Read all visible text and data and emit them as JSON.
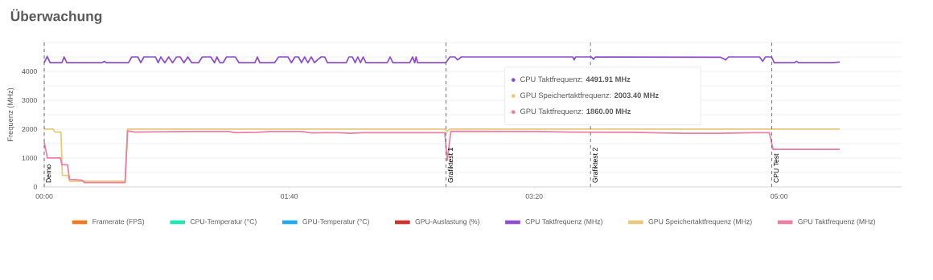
{
  "chart_data": {
    "type": "line",
    "title": "Überwachung",
    "ylabel": "Frequenz (MHz)",
    "xlim": [
      0,
      350
    ],
    "ylim": [
      0,
      5000
    ],
    "xticks": [
      {
        "value": 0,
        "label": "00:00"
      },
      {
        "value": 100,
        "label": "01:40"
      },
      {
        "value": 200,
        "label": "03:20"
      },
      {
        "value": 300,
        "label": "05:00"
      }
    ],
    "yticks": [
      0,
      {
        "value": 500,
        "label": null
      },
      1000,
      {
        "value": 1500,
        "label": null
      },
      2000,
      {
        "value": 2500,
        "label": null
      },
      3000,
      {
        "value": 3500,
        "label": null
      },
      4000,
      {
        "value": 4500,
        "label": null
      },
      {
        "value": 5000,
        "label": null
      }
    ],
    "grid": "y",
    "legend": "bottom",
    "marker": "none",
    "line_style": "solid",
    "series": [
      {
        "name": "Framerate (FPS)",
        "color": "#f07b1f"
      },
      {
        "name": "CPU-Temperatur (°C)",
        "color": "#1de9b6"
      },
      {
        "name": "GPU-Temperatur (°C)",
        "color": "#1eaaf1"
      },
      {
        "name": "GPU-Auslastung (%)",
        "color": "#d32f2f"
      },
      {
        "name": "CPU Taktfrequenz (MHz)",
        "color": "#8e4ecf",
        "x": [
          0,
          1.2,
          2.4,
          7.2,
          8.1,
          9.2,
          23.5,
          24.5,
          25.5,
          34.4,
          35.7,
          38.2,
          39.4,
          40.7,
          45.4,
          46.5,
          47.6,
          49.2,
          50.8,
          52.4,
          54,
          55.5,
          57,
          58.6,
          60.2,
          63,
          64.5,
          68,
          69.5,
          70.5,
          71.7,
          73,
          74.4,
          78,
          79.5,
          86,
          87,
          88,
          94,
          95.7,
          99.5,
          100.9,
          102.3,
          103.8,
          105,
          106.3,
          107.6,
          109,
          110.3,
          111.5,
          113,
          114.5,
          115.6,
          123.3,
          124.4,
          125.8,
          126.9,
          128,
          129.1,
          130.2,
          131.3,
          134,
          140,
          141.2,
          142.3,
          149.2,
          150.4,
          151.2,
          151.8,
          152.4,
          163.9,
          165.6,
          167.6,
          168.7,
          170.3,
          215.8,
          216.3,
          216.9,
          223.4,
          224.2,
          225,
          276,
          278.2,
          279.3,
          292,
          293.3,
          294.4,
          296.9,
          298,
          306.2,
          307.1,
          308,
          321.4,
          324.7
        ],
        "values": [
          4300,
          4520,
          4300,
          4300,
          4500,
          4300,
          4300,
          4350,
          4300,
          4300,
          4500,
          4500,
          4300,
          4500,
          4500,
          4300,
          4500,
          4300,
          4500,
          4300,
          4500,
          4500,
          4300,
          4500,
          4300,
          4300,
          4500,
          4500,
          4300,
          4500,
          4300,
          4300,
          4500,
          4500,
          4300,
          4300,
          4500,
          4300,
          4300,
          4500,
          4500,
          4300,
          4500,
          4500,
          4300,
          4500,
          4300,
          4500,
          4300,
          4400,
          4500,
          4500,
          4300,
          4300,
          4500,
          4500,
          4300,
          4500,
          4300,
          4500,
          4300,
          4300,
          4300,
          4500,
          4300,
          4300,
          4500,
          4300,
          4500,
          4300,
          4300,
          4500,
          4500,
          4400,
          4500,
          4500,
          4400,
          4500,
          4500,
          4420,
          4500,
          4491.91,
          4400,
          4500,
          4500,
          4350,
          4500,
          4500,
          4300,
          4300,
          4350,
          4300,
          4300,
          4320
        ]
      },
      {
        "name": "GPU Speichertaktfrequenz (MHz)",
        "color": "#e8c97b",
        "x": [
          0,
          3.6,
          4.4,
          6.8,
          7.4,
          9.6,
          10.4,
          33,
          34,
          163.5,
          164.5,
          165.5,
          276,
          324.7
        ],
        "values": [
          2000,
          2000,
          1900,
          1900,
          400,
          400,
          200,
          200,
          2000,
          2000,
          1920,
          2000,
          2003.4,
          2000
        ]
      },
      {
        "name": "GPU Taktfrequenz (MHz)",
        "color": "#eb7fa4",
        "x": [
          0,
          1.3,
          6.6,
          7.2,
          9.5,
          10.3,
          13,
          15.5,
          16.4,
          33,
          34,
          37,
          60,
          75,
          78,
          87,
          93,
          105,
          109,
          115,
          120,
          125,
          130,
          145,
          160,
          163.5,
          164.5,
          166,
          200,
          215,
          240,
          260,
          276,
          290,
          296,
          297.5,
          324.7
        ],
        "values": [
          1550,
          1000,
          1000,
          770,
          770,
          260,
          250,
          230,
          150,
          150,
          1940,
          1900,
          1920,
          1920,
          1880,
          1890,
          1920,
          1920,
          1870,
          1880,
          1880,
          1860,
          1880,
          1880,
          1880,
          1880,
          920,
          1930,
          1920,
          1900,
          1890,
          1860,
          1860,
          1880,
          1880,
          1300,
          1300
        ]
      }
    ],
    "ref_lines": [
      {
        "axis": "x",
        "value": 0,
        "label": "Demo",
        "color": "#555555",
        "line_style": "dashed"
      },
      {
        "axis": "x",
        "value": 164,
        "label": "Grafiktest 1",
        "color": "#555555",
        "line_style": "dashed"
      },
      {
        "axis": "x",
        "value": 223,
        "label": "Grafiktest 2",
        "color": "#555555",
        "line_style": "dashed"
      },
      {
        "axis": "x",
        "value": 297,
        "label": "CPU Test",
        "color": "#555555",
        "line_style": "dashed"
      }
    ],
    "annotations": [
      "CPU Taktfrequenz: **4491.91 MHz**",
      "GPU Speichertaktfrequenz: **2003.40 MHz**",
      "GPU Taktfrequenz: **1860.00 MHz**"
    ]
  }
}
